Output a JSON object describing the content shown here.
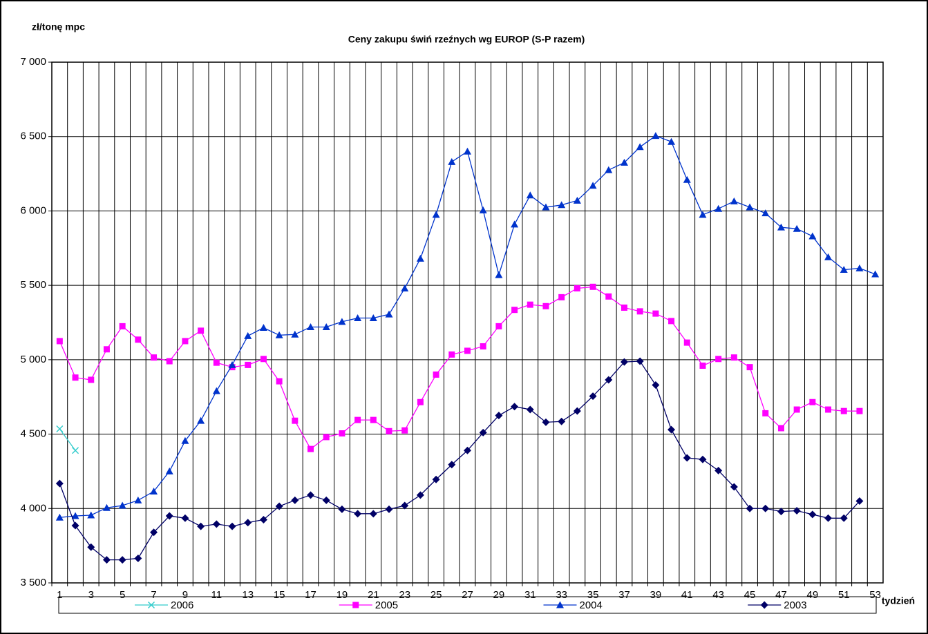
{
  "chart_data": {
    "type": "line",
    "title": "Ceny zakupu świń rzeźnych wg EUROP (S-P razem)",
    "y_label": "zł/tonę mpc",
    "x_label": "tydzień",
    "categories": [
      1,
      null,
      3,
      null,
      5,
      null,
      7,
      null,
      9,
      null,
      11,
      null,
      13,
      null,
      15,
      null,
      17,
      null,
      19,
      null,
      21,
      null,
      23,
      null,
      25,
      null,
      27,
      null,
      29,
      null,
      31,
      null,
      33,
      null,
      35,
      null,
      37,
      null,
      39,
      null,
      41,
      null,
      43,
      null,
      45,
      null,
      47,
      null,
      49,
      null,
      51,
      null,
      53
    ],
    "ylim": [
      3500,
      7000
    ],
    "yticks": [
      {
        "value": 3500,
        "label": "3 500"
      },
      {
        "value": 4000,
        "label": "4 000"
      },
      {
        "value": 4500,
        "label": "4 500"
      },
      {
        "value": 5000,
        "label": "5 000"
      },
      {
        "value": 5500,
        "label": "5 500"
      },
      {
        "value": 6000,
        "label": "6 000"
      },
      {
        "value": 6500,
        "label": "6 500"
      },
      {
        "value": 7000,
        "label": "7 000"
      }
    ],
    "grid": true,
    "legend": "bottom",
    "series": [
      {
        "name": "2006",
        "color": "#33cccc",
        "marker": "x",
        "values": [
          4535,
          4390,
          null,
          null,
          null,
          null,
          null,
          null,
          null,
          null,
          null,
          null,
          null,
          null,
          null,
          null,
          null,
          null,
          null,
          null,
          null,
          null,
          null,
          null,
          null,
          null,
          null,
          null,
          null,
          null,
          null,
          null,
          null,
          null,
          null,
          null,
          null,
          null,
          null,
          null,
          null,
          null,
          null,
          null,
          null,
          null,
          null,
          null,
          null,
          null,
          null,
          null,
          null
        ]
      },
      {
        "name": "2005",
        "color": "#ff00ff",
        "marker": "square",
        "values": [
          5125,
          4880,
          4865,
          5070,
          5225,
          5135,
          5015,
          4990,
          5125,
          5195,
          4980,
          4950,
          4965,
          5005,
          4855,
          4590,
          4400,
          4480,
          4505,
          4595,
          4595,
          4520,
          4525,
          4715,
          4900,
          5035,
          5060,
          5090,
          5225,
          5335,
          5370,
          5360,
          5420,
          5480,
          5490,
          5425,
          5350,
          5325,
          5310,
          5260,
          5115,
          4960,
          5005,
          5015,
          4950,
          4640,
          4540,
          4665,
          4715,
          4665,
          4655,
          4655,
          null
        ]
      },
      {
        "name": "2004",
        "color": "#0033cc",
        "marker": "triangle",
        "values": [
          3940,
          3950,
          3955,
          4005,
          4020,
          4055,
          4115,
          4250,
          4455,
          4590,
          4790,
          4965,
          5160,
          5215,
          5165,
          5170,
          5220,
          5220,
          5255,
          5280,
          5280,
          5305,
          5480,
          5680,
          5975,
          6330,
          6400,
          6005,
          5570,
          5910,
          6105,
          6025,
          6040,
          6070,
          6170,
          6275,
          6325,
          6430,
          6505,
          6465,
          6210,
          5975,
          6015,
          6065,
          6025,
          5985,
          5890,
          5880,
          5830,
          5690,
          5605,
          5615,
          5575
        ]
      },
      {
        "name": "2003",
        "color": "#000066",
        "marker": "diamond",
        "values": [
          4168,
          3885,
          3740,
          3655,
          3655,
          3665,
          3840,
          3950,
          3935,
          3880,
          3895,
          3880,
          3905,
          3925,
          4015,
          4055,
          4090,
          4055,
          3995,
          3965,
          3965,
          3995,
          4020,
          4090,
          4195,
          4295,
          4390,
          4510,
          4625,
          4685,
          4665,
          4580,
          4585,
          4655,
          4755,
          4865,
          4985,
          4990,
          4830,
          4530,
          4340,
          4330,
          4255,
          4145,
          4000,
          4000,
          3980,
          3985,
          3960,
          3935,
          3935,
          4050,
          null
        ]
      }
    ]
  }
}
